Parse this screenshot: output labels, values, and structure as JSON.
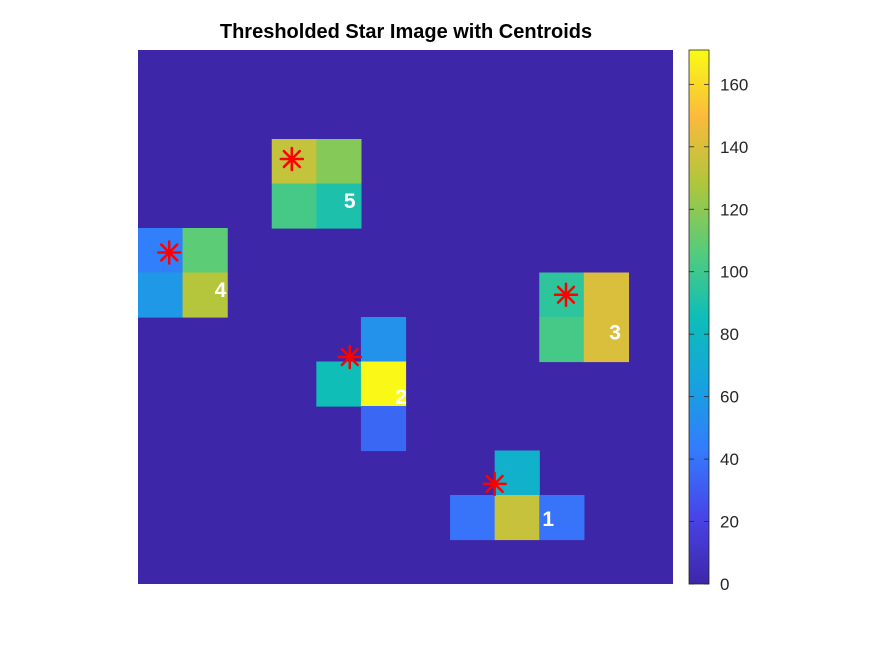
{
  "chart_data": {
    "type": "heatmap",
    "title": "Thresholded Star Image with Centroids",
    "grid_size": [
      12,
      12
    ],
    "background_value": 0,
    "pixels": [
      {
        "row": 2,
        "col": 3,
        "value": 134
      },
      {
        "row": 2,
        "col": 4,
        "value": 118
      },
      {
        "row": 3,
        "col": 3,
        "value": 102
      },
      {
        "row": 3,
        "col": 4,
        "value": 90
      },
      {
        "row": 4,
        "col": 0,
        "value": 45
      },
      {
        "row": 4,
        "col": 1,
        "value": 108
      },
      {
        "row": 5,
        "col": 0,
        "value": 58
      },
      {
        "row": 5,
        "col": 1,
        "value": 130
      },
      {
        "row": 5,
        "col": 9,
        "value": 95
      },
      {
        "row": 5,
        "col": 10,
        "value": 140
      },
      {
        "row": 6,
        "col": 9,
        "value": 102
      },
      {
        "row": 6,
        "col": 10,
        "value": 140
      },
      {
        "row": 6,
        "col": 5,
        "value": 55
      },
      {
        "row": 7,
        "col": 4,
        "value": 86
      },
      {
        "row": 7,
        "col": 5,
        "value": 170
      },
      {
        "row": 8,
        "col": 5,
        "value": 35
      },
      {
        "row": 9,
        "col": 8,
        "value": 75
      },
      {
        "row": 10,
        "col": 7,
        "value": 40
      },
      {
        "row": 10,
        "col": 8,
        "value": 135
      },
      {
        "row": 10,
        "col": 9,
        "value": 40
      }
    ],
    "centroids": [
      {
        "label": "1",
        "x": 8.0,
        "y": 9.75
      },
      {
        "label": "2",
        "x": 4.75,
        "y": 6.9
      },
      {
        "label": "3",
        "x": 9.6,
        "y": 5.5
      },
      {
        "label": "4",
        "x": 0.7,
        "y": 4.55
      },
      {
        "label": "5",
        "x": 3.45,
        "y": 2.45
      }
    ],
    "labels": [
      {
        "text": "1",
        "x": 9.2,
        "y": 10.7
      },
      {
        "text": "2",
        "x": 5.9,
        "y": 7.95
      },
      {
        "text": "3",
        "x": 10.7,
        "y": 6.5
      },
      {
        "text": "4",
        "x": 1.85,
        "y": 5.55
      },
      {
        "text": "5",
        "x": 4.75,
        "y": 3.55
      }
    ],
    "colorbar": {
      "min": 0,
      "max": 171,
      "ticks": [
        "0",
        "20",
        "40",
        "60",
        "80",
        "100",
        "120",
        "140",
        "160"
      ]
    },
    "colors": {
      "centroid_marker": "#ff0000",
      "star_label": "#ffffff",
      "colormap": "parula"
    }
  }
}
